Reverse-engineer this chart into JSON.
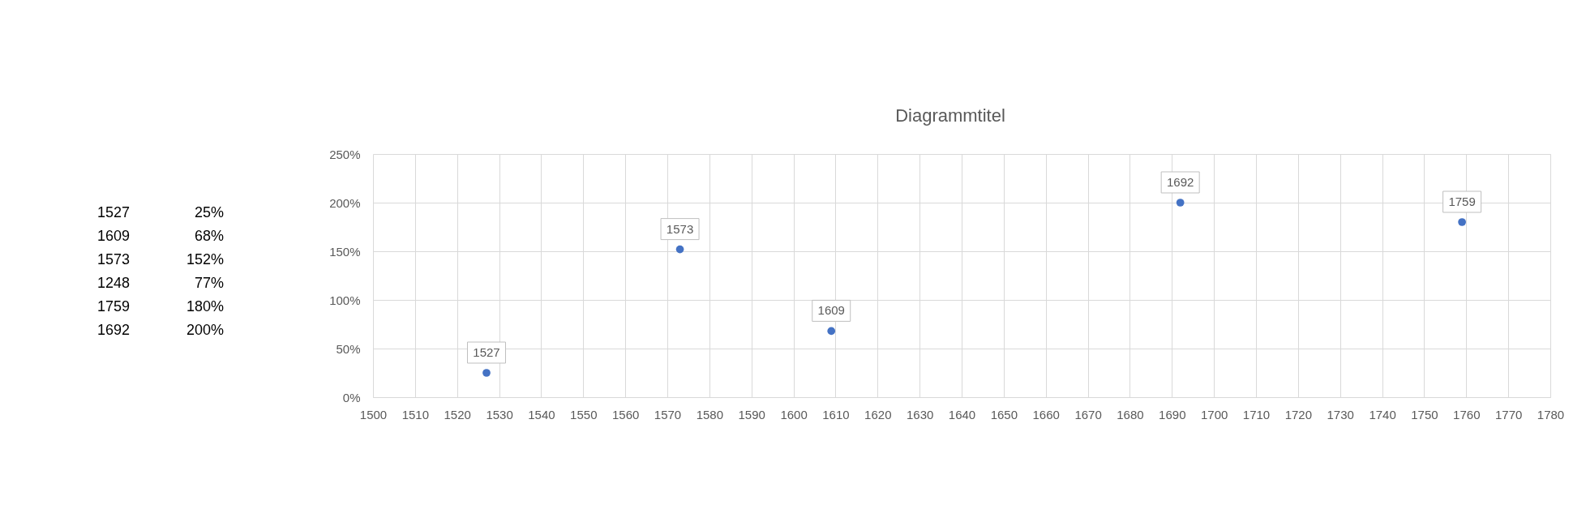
{
  "chart_data": {
    "type": "scatter",
    "title": "Diagrammtitel",
    "x": [
      1527,
      1609,
      1573,
      1759,
      1692
    ],
    "values": [
      25,
      68,
      152,
      180,
      200
    ],
    "color": "#4472c4",
    "marker": "circle",
    "xlim": [
      1500,
      1780
    ],
    "xticks": [
      1500,
      1510,
      1520,
      1530,
      1540,
      1550,
      1560,
      1570,
      1580,
      1590,
      1600,
      1610,
      1620,
      1630,
      1640,
      1650,
      1660,
      1670,
      1680,
      1690,
      1700,
      1710,
      1720,
      1730,
      1740,
      1750,
      1760,
      1770,
      1780
    ],
    "ylim": [
      0,
      250
    ],
    "yticks": [
      {
        "value": 0,
        "label": "0%"
      },
      {
        "value": 50,
        "label": "50%"
      },
      {
        "value": 100,
        "label": "100%"
      },
      {
        "value": 150,
        "label": "150%"
      },
      {
        "value": 200,
        "label": "200%"
      },
      {
        "value": 250,
        "label": "250%"
      }
    ],
    "grid": true,
    "annotations": [
      {
        "text": "1527",
        "x": 1527,
        "y": 25
      },
      {
        "text": "1609",
        "x": 1609,
        "y": 68
      },
      {
        "text": "1573",
        "x": 1573,
        "y": 152
      },
      {
        "text": "1759",
        "x": 1759,
        "y": 180
      },
      {
        "text": "1692",
        "x": 1692,
        "y": 200
      },
      "1527",
      "25%",
      "1609",
      "68%",
      "1573",
      "152%",
      "1248",
      "77%",
      "1759",
      "180%",
      "1692",
      "200%"
    ]
  }
}
